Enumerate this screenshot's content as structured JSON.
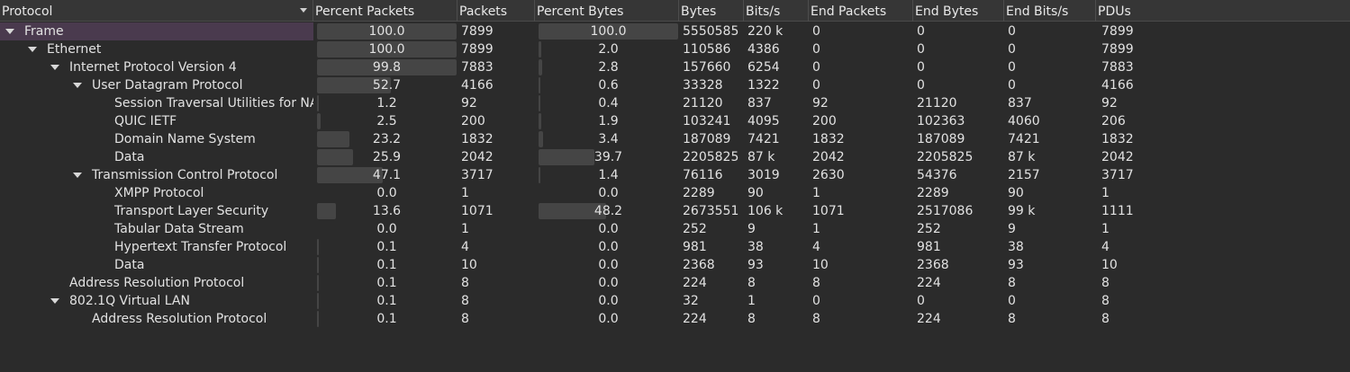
{
  "columns": [
    {
      "label": "Protocol",
      "sorted": true
    },
    {
      "label": "Percent Packets"
    },
    {
      "label": "Packets"
    },
    {
      "label": "Percent Bytes"
    },
    {
      "label": "Bytes"
    },
    {
      "label": "Bits/s"
    },
    {
      "label": "End Packets"
    },
    {
      "label": "End Bytes"
    },
    {
      "label": "End Bits/s"
    },
    {
      "label": "PDUs"
    }
  ],
  "rows": [
    {
      "name": "Frame",
      "depth": 0,
      "expanded": true,
      "selected": true,
      "pct_packets": "100.0",
      "pct_packets_value": 100.0,
      "packets": "7899",
      "pct_bytes": "100.0",
      "pct_bytes_value": 100.0,
      "bytes": "5550585",
      "bits": "220 k",
      "end_packets": "0",
      "end_bytes": "0",
      "end_bits": "0",
      "pdus": "7899"
    },
    {
      "name": "Ethernet",
      "depth": 1,
      "expanded": true,
      "pct_packets": "100.0",
      "pct_packets_value": 100.0,
      "packets": "7899",
      "pct_bytes": "2.0",
      "pct_bytes_value": 2.0,
      "bytes": "110586",
      "bits": "4386",
      "end_packets": "0",
      "end_bytes": "0",
      "end_bits": "0",
      "pdus": "7899"
    },
    {
      "name": "Internet Protocol Version 4",
      "depth": 2,
      "expanded": true,
      "pct_packets": "99.8",
      "pct_packets_value": 99.8,
      "packets": "7883",
      "pct_bytes": "2.8",
      "pct_bytes_value": 2.8,
      "bytes": "157660",
      "bits": "6254",
      "end_packets": "0",
      "end_bytes": "0",
      "end_bits": "0",
      "pdus": "7883"
    },
    {
      "name": "User Datagram Protocol",
      "depth": 3,
      "expanded": true,
      "pct_packets": "52.7",
      "pct_packets_value": 52.7,
      "packets": "4166",
      "pct_bytes": "0.6",
      "pct_bytes_value": 0.6,
      "bytes": "33328",
      "bits": "1322",
      "end_packets": "0",
      "end_bytes": "0",
      "end_bits": "0",
      "pdus": "4166"
    },
    {
      "name": "Session Traversal Utilities for NAT",
      "depth": 4,
      "pct_packets": "1.2",
      "pct_packets_value": 1.2,
      "packets": "92",
      "pct_bytes": "0.4",
      "pct_bytes_value": 0.4,
      "bytes": "21120",
      "bits": "837",
      "end_packets": "92",
      "end_bytes": "21120",
      "end_bits": "837",
      "pdus": "92"
    },
    {
      "name": "QUIC IETF",
      "depth": 4,
      "pct_packets": "2.5",
      "pct_packets_value": 2.5,
      "packets": "200",
      "pct_bytes": "1.9",
      "pct_bytes_value": 1.9,
      "bytes": "103241",
      "bits": "4095",
      "end_packets": "200",
      "end_bytes": "102363",
      "end_bits": "4060",
      "pdus": "206"
    },
    {
      "name": "Domain Name System",
      "depth": 4,
      "pct_packets": "23.2",
      "pct_packets_value": 23.2,
      "packets": "1832",
      "pct_bytes": "3.4",
      "pct_bytes_value": 3.4,
      "bytes": "187089",
      "bits": "7421",
      "end_packets": "1832",
      "end_bytes": "187089",
      "end_bits": "7421",
      "pdus": "1832"
    },
    {
      "name": "Data",
      "depth": 4,
      "pct_packets": "25.9",
      "pct_packets_value": 25.9,
      "packets": "2042",
      "pct_bytes": "39.7",
      "pct_bytes_value": 39.7,
      "bytes": "2205825",
      "bits": "87 k",
      "end_packets": "2042",
      "end_bytes": "2205825",
      "end_bits": "87 k",
      "pdus": "2042"
    },
    {
      "name": "Transmission Control Protocol",
      "depth": 3,
      "expanded": true,
      "pct_packets": "47.1",
      "pct_packets_value": 47.1,
      "packets": "3717",
      "pct_bytes": "1.4",
      "pct_bytes_value": 1.4,
      "bytes": "76116",
      "bits": "3019",
      "end_packets": "2630",
      "end_bytes": "54376",
      "end_bits": "2157",
      "pdus": "3717"
    },
    {
      "name": "XMPP Protocol",
      "depth": 4,
      "pct_packets": "0.0",
      "pct_packets_value": 0.0,
      "packets": "1",
      "pct_bytes": "0.0",
      "pct_bytes_value": 0.0,
      "bytes": "2289",
      "bits": "90",
      "end_packets": "1",
      "end_bytes": "2289",
      "end_bits": "90",
      "pdus": "1"
    },
    {
      "name": "Transport Layer Security",
      "depth": 4,
      "pct_packets": "13.6",
      "pct_packets_value": 13.6,
      "packets": "1071",
      "pct_bytes": "48.2",
      "pct_bytes_value": 48.2,
      "bytes": "2673551",
      "bits": "106 k",
      "end_packets": "1071",
      "end_bytes": "2517086",
      "end_bits": "99 k",
      "pdus": "1111"
    },
    {
      "name": "Tabular Data Stream",
      "depth": 4,
      "pct_packets": "0.0",
      "pct_packets_value": 0.0,
      "packets": "1",
      "pct_bytes": "0.0",
      "pct_bytes_value": 0.0,
      "bytes": "252",
      "bits": "9",
      "end_packets": "1",
      "end_bytes": "252",
      "end_bits": "9",
      "pdus": "1"
    },
    {
      "name": "Hypertext Transfer Protocol",
      "depth": 4,
      "pct_packets": "0.1",
      "pct_packets_value": 0.1,
      "packets": "4",
      "pct_bytes": "0.0",
      "pct_bytes_value": 0.0,
      "bytes": "981",
      "bits": "38",
      "end_packets": "4",
      "end_bytes": "981",
      "end_bits": "38",
      "pdus": "4"
    },
    {
      "name": "Data",
      "depth": 4,
      "pct_packets": "0.1",
      "pct_packets_value": 0.1,
      "packets": "10",
      "pct_bytes": "0.0",
      "pct_bytes_value": 0.0,
      "bytes": "2368",
      "bits": "93",
      "end_packets": "10",
      "end_bytes": "2368",
      "end_bits": "93",
      "pdus": "10"
    },
    {
      "name": "Address Resolution Protocol",
      "depth": 2,
      "pct_packets": "0.1",
      "pct_packets_value": 0.1,
      "packets": "8",
      "pct_bytes": "0.0",
      "pct_bytes_value": 0.0,
      "bytes": "224",
      "bits": "8",
      "end_packets": "8",
      "end_bytes": "224",
      "end_bits": "8",
      "pdus": "8"
    },
    {
      "name": "802.1Q Virtual LAN",
      "depth": 2,
      "expanded": true,
      "pct_packets": "0.1",
      "pct_packets_value": 0.1,
      "packets": "8",
      "pct_bytes": "0.0",
      "pct_bytes_value": 0.0,
      "bytes": "32",
      "bits": "1",
      "end_packets": "0",
      "end_bytes": "0",
      "end_bits": "0",
      "pdus": "8"
    },
    {
      "name": "Address Resolution Protocol",
      "depth": 3,
      "pct_packets": "0.1",
      "pct_packets_value": 0.1,
      "packets": "8",
      "pct_bytes": "0.0",
      "pct_bytes_value": 0.0,
      "bytes": "224",
      "bits": "8",
      "end_packets": "8",
      "end_bytes": "224",
      "end_bits": "8",
      "pdus": "8"
    }
  ],
  "colors": {
    "background": "#2b2b2b",
    "header": "#363636",
    "selected_row": "#4a3a4e",
    "bar": "#454545",
    "text": "#e2e2e2"
  }
}
